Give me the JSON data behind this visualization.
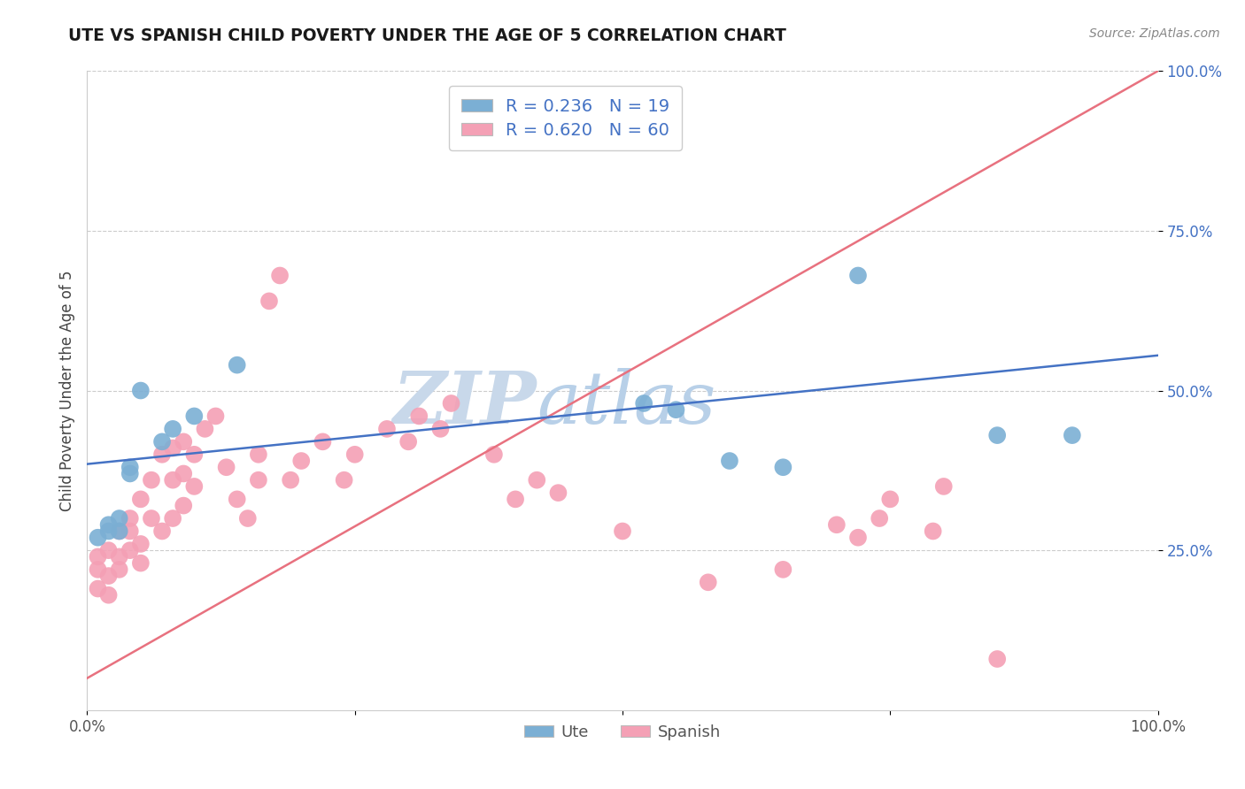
{
  "title": "UTE VS SPANISH CHILD POVERTY UNDER THE AGE OF 5 CORRELATION CHART",
  "source_text": "Source: ZipAtlas.com",
  "ylabel": "Child Poverty Under the Age of 5",
  "xlim": [
    0,
    1
  ],
  "ylim": [
    0,
    1
  ],
  "xticks": [
    0,
    0.25,
    0.5,
    0.75,
    1.0
  ],
  "xtick_labels": [
    "0.0%",
    "",
    "",
    "",
    "100.0%"
  ],
  "ytick_labels": [
    "25.0%",
    "50.0%",
    "75.0%",
    "100.0%"
  ],
  "yticks": [
    0.25,
    0.5,
    0.75,
    1.0
  ],
  "ute_color": "#7bafd4",
  "spanish_color": "#f4a0b5",
  "ute_line_color": "#4472c4",
  "spanish_line_color": "#e8717f",
  "watermark_zip_color": "#c5d8ee",
  "watermark_atlas_color": "#c5d8ee",
  "legend_ute_label": "R = 0.236   N = 19",
  "legend_spanish_label": "R = 0.620   N = 60",
  "ute_x": [
    0.01,
    0.02,
    0.02,
    0.03,
    0.03,
    0.04,
    0.04,
    0.05,
    0.07,
    0.08,
    0.1,
    0.14,
    0.55,
    0.72,
    0.85,
    0.92,
    0.52,
    0.6,
    0.65
  ],
  "ute_y": [
    0.27,
    0.28,
    0.29,
    0.28,
    0.3,
    0.37,
    0.38,
    0.5,
    0.42,
    0.44,
    0.46,
    0.54,
    0.47,
    0.68,
    0.43,
    0.43,
    0.48,
    0.39,
    0.38
  ],
  "spanish_x": [
    0.01,
    0.01,
    0.01,
    0.02,
    0.02,
    0.02,
    0.03,
    0.03,
    0.03,
    0.04,
    0.04,
    0.04,
    0.05,
    0.05,
    0.05,
    0.06,
    0.06,
    0.07,
    0.07,
    0.08,
    0.08,
    0.08,
    0.09,
    0.09,
    0.09,
    0.1,
    0.1,
    0.11,
    0.12,
    0.13,
    0.14,
    0.15,
    0.16,
    0.16,
    0.17,
    0.18,
    0.19,
    0.2,
    0.22,
    0.24,
    0.25,
    0.28,
    0.3,
    0.31,
    0.33,
    0.34,
    0.38,
    0.4,
    0.42,
    0.44,
    0.5,
    0.58,
    0.65,
    0.7,
    0.72,
    0.74,
    0.75,
    0.79,
    0.8,
    0.85
  ],
  "spanish_y": [
    0.19,
    0.22,
    0.24,
    0.18,
    0.21,
    0.25,
    0.22,
    0.24,
    0.28,
    0.25,
    0.28,
    0.3,
    0.23,
    0.26,
    0.33,
    0.3,
    0.36,
    0.28,
    0.4,
    0.3,
    0.36,
    0.41,
    0.32,
    0.37,
    0.42,
    0.35,
    0.4,
    0.44,
    0.46,
    0.38,
    0.33,
    0.3,
    0.36,
    0.4,
    0.64,
    0.68,
    0.36,
    0.39,
    0.42,
    0.36,
    0.4,
    0.44,
    0.42,
    0.46,
    0.44,
    0.48,
    0.4,
    0.33,
    0.36,
    0.34,
    0.28,
    0.2,
    0.22,
    0.29,
    0.27,
    0.3,
    0.33,
    0.28,
    0.35,
    0.08
  ]
}
